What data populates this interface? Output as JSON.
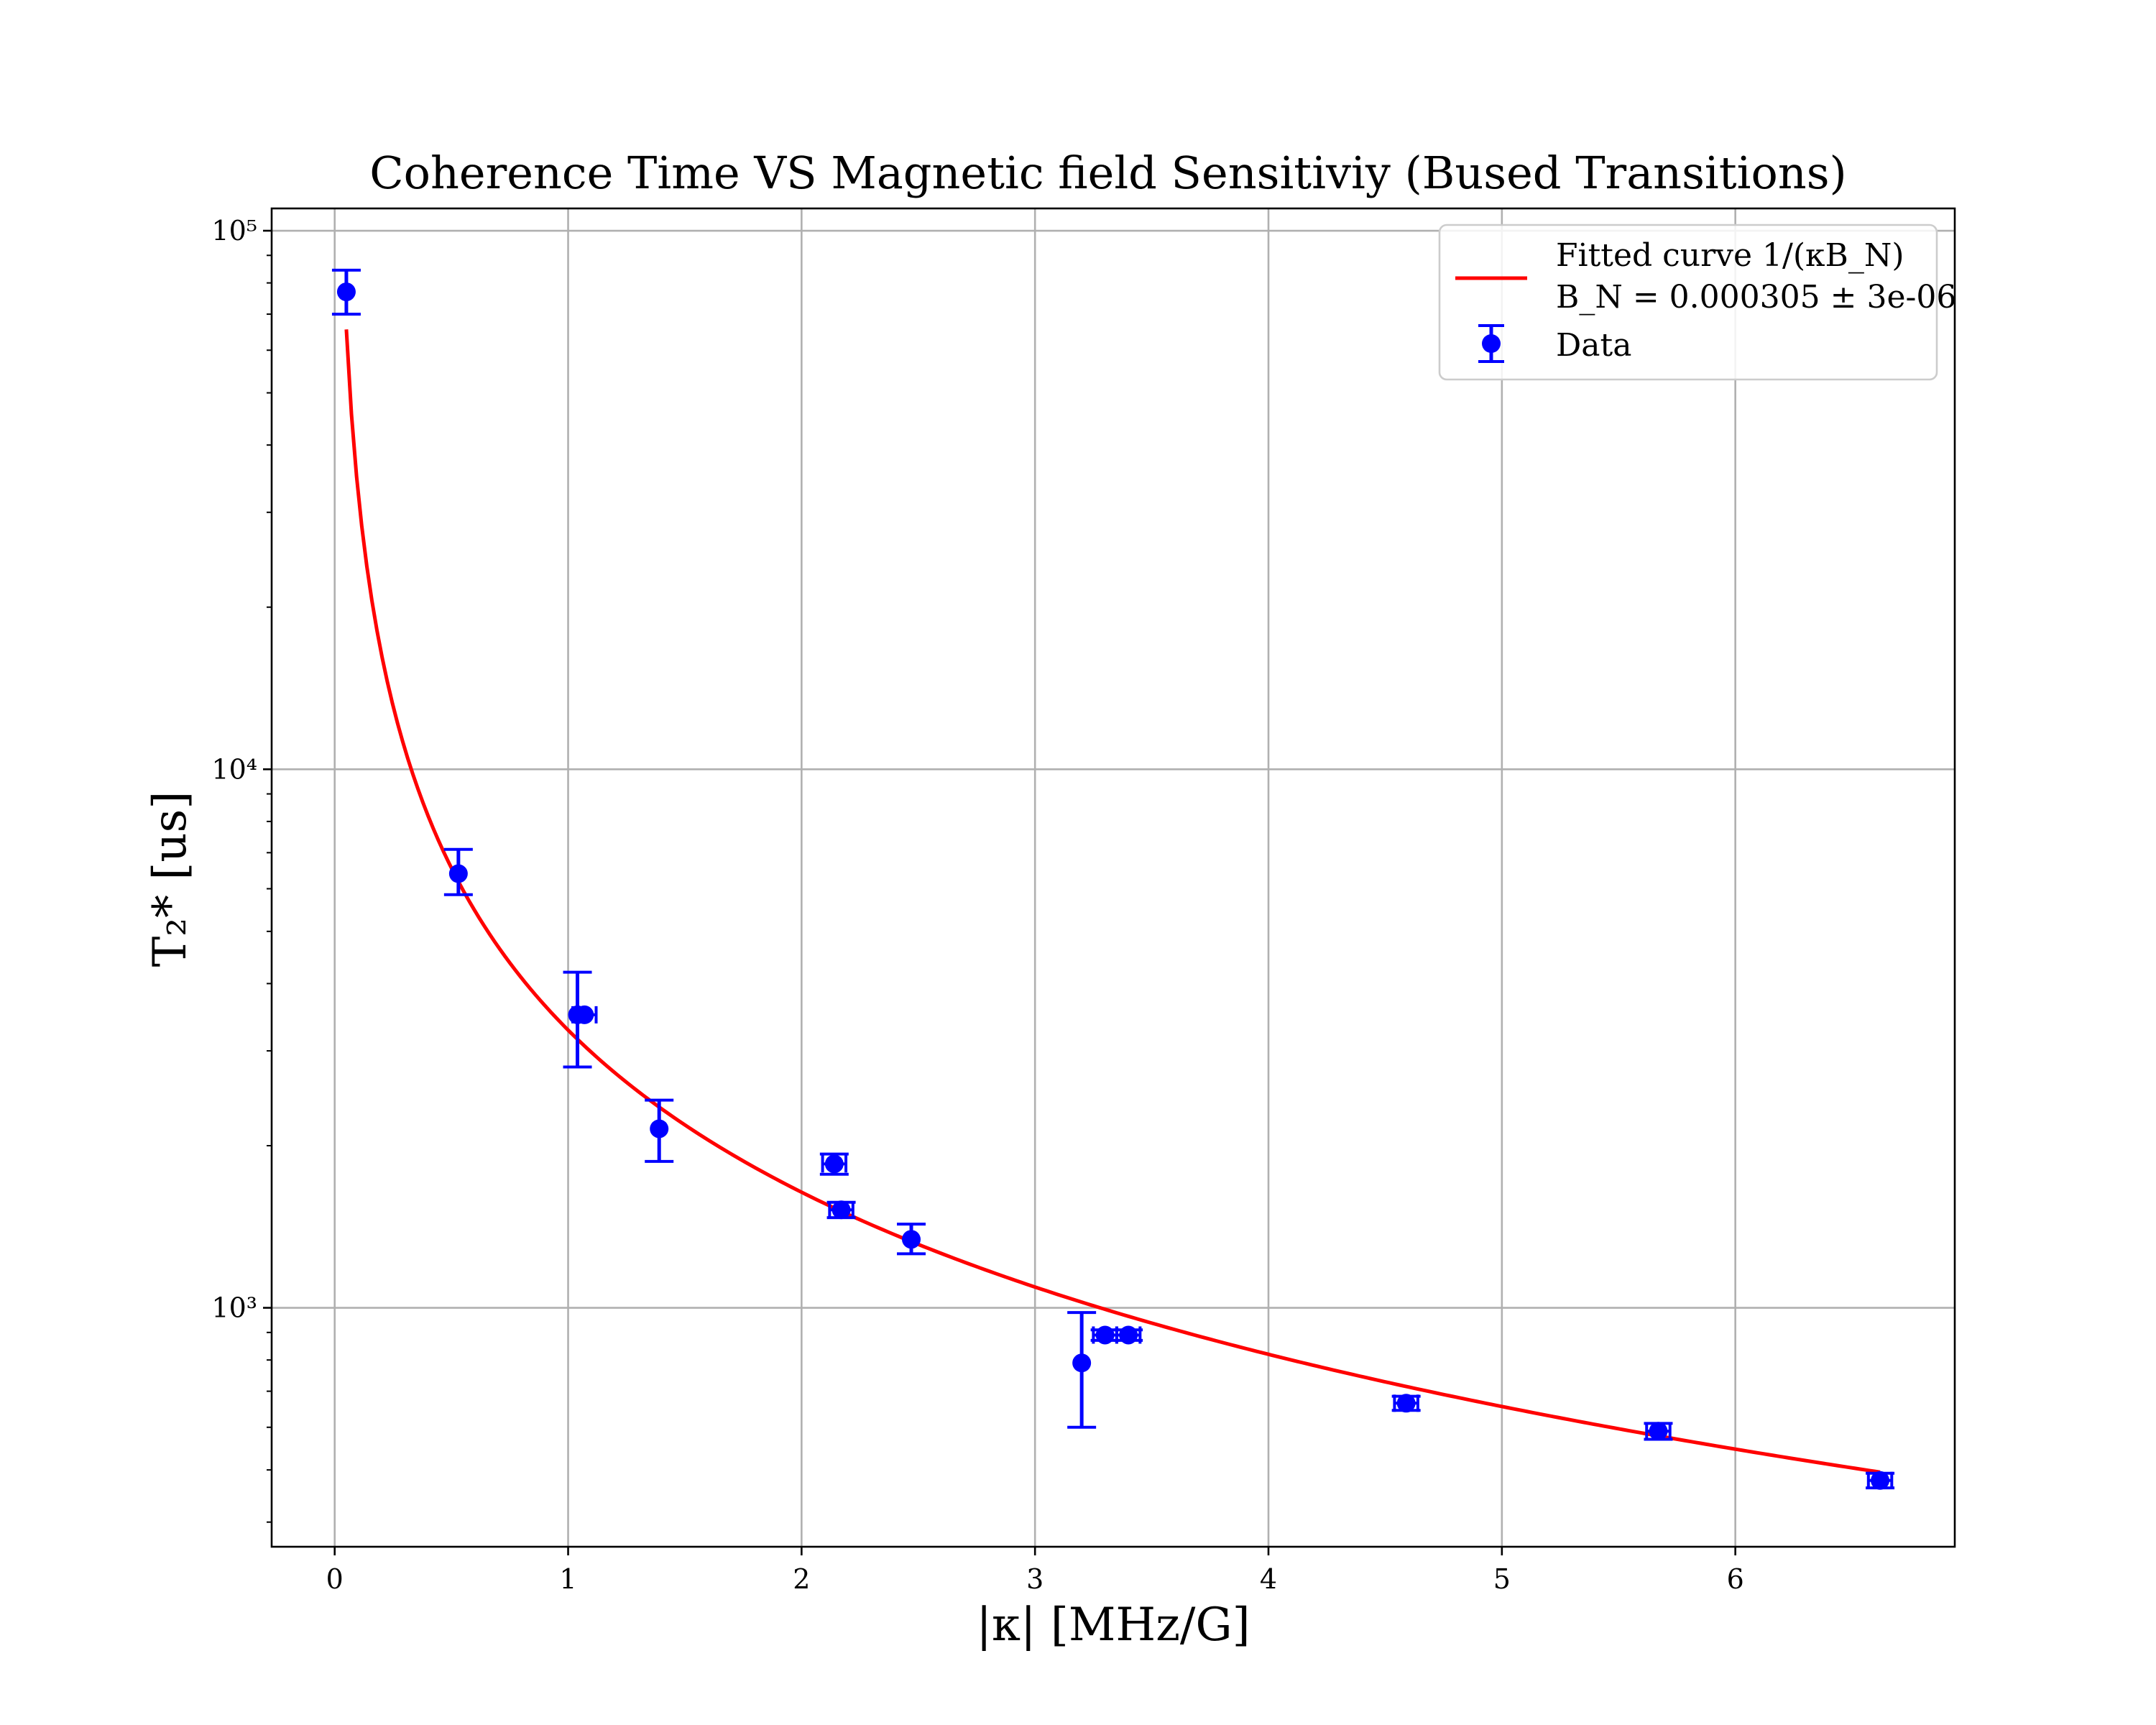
{
  "chart_data": {
    "type": "scatter",
    "title": "Coherence Time VS Magnetic field Sensitiviy (Bused Transitions)",
    "xlabel": "|κ| [MHz/G]",
    "ylabel": "T₂* [us]",
    "xlim": [
      -0.27,
      6.94
    ],
    "ylim": [
      360,
      110000
    ],
    "yscale": "log",
    "grid": true,
    "legend_position": "top-right",
    "x_ticks": [
      0,
      1,
      2,
      3,
      4,
      5,
      6
    ],
    "x_tick_labels": [
      "0",
      "1",
      "2",
      "3",
      "4",
      "5",
      "6"
    ],
    "y_ticks": [
      1000,
      10000,
      100000
    ],
    "y_tick_labels": [
      "10³",
      "10⁴",
      "10⁵"
    ],
    "colors": {
      "data": "#0000ff",
      "fit": "#ff0000",
      "grid": "#b0b0b0",
      "axes": "#000000"
    },
    "fit": {
      "legend_line1": "Fitted curve 1/(κB_N)",
      "legend_line2": "B_N = 0.000305 ± 3e-06",
      "B_N": 0.000305,
      "x_range": [
        0.05,
        6.62
      ]
    },
    "series": [
      {
        "name": "Data",
        "type": "errorbar",
        "points": [
          {
            "x": 0.05,
            "y": 77000,
            "yerr": [
              7000,
              7500
            ]
          },
          {
            "x": 0.53,
            "y": 6400,
            "yerr": [
              550,
              700
            ]
          },
          {
            "x": 1.04,
            "y": 3500,
            "yerr": [
              700,
              700
            ]
          },
          {
            "x": 1.07,
            "y": 3500,
            "xerr": 0.05
          },
          {
            "x": 1.39,
            "y": 2150,
            "yerr": [
              280,
              280
            ]
          },
          {
            "x": 2.14,
            "y": 1850,
            "xerr": 0.05,
            "yerr": [
              80,
              80
            ]
          },
          {
            "x": 2.17,
            "y": 1520,
            "xerr": 0.05,
            "yerr": [
              50,
              50
            ]
          },
          {
            "x": 2.47,
            "y": 1340,
            "yerr": [
              80,
              90
            ]
          },
          {
            "x": 3.2,
            "y": 790,
            "yerr": [
              190,
              190
            ]
          },
          {
            "x": 3.3,
            "y": 890,
            "xerr": 0.05,
            "yerr": [
              20,
              20
            ]
          },
          {
            "x": 3.4,
            "y": 890,
            "xerr": 0.05,
            "yerr": [
              20,
              20
            ]
          },
          {
            "x": 4.59,
            "y": 665,
            "xerr": 0.05,
            "yerr": [
              20,
              20
            ]
          },
          {
            "x": 5.67,
            "y": 590,
            "xerr": 0.05,
            "yerr": [
              20,
              20
            ]
          },
          {
            "x": 6.62,
            "y": 478,
            "xerr": 0.05,
            "yerr": [
              15,
              15
            ]
          }
        ]
      }
    ]
  }
}
